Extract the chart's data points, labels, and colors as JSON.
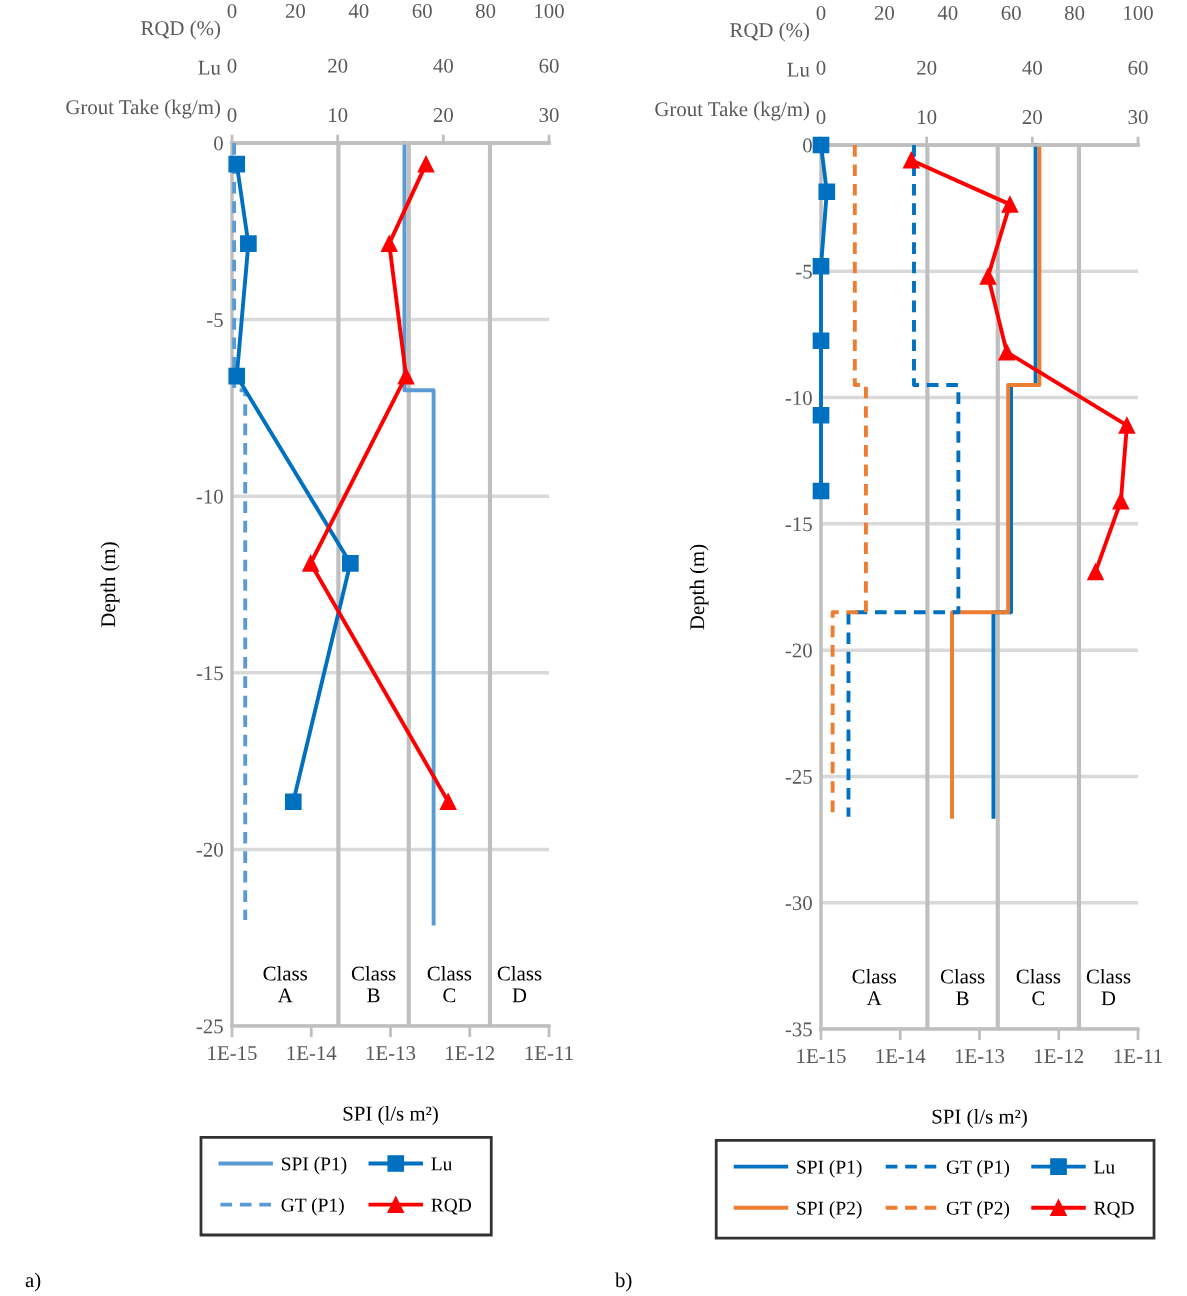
{
  "chart_data": [
    {
      "type": "line",
      "xlabel": "SPI (l/s m²)",
      "ylabel": "Depth (m)",
      "x2label": "Grout Take (kg/m)",
      "log": "x",
      "grid": "y",
      "legend": "bottom",
      "xlim": [
        1e-15,
        1e-11
      ],
      "xticks": [
        {
          "value": 1e-15,
          "label": "1E-15"
        },
        {
          "value": 1e-14,
          "label": "1E-14"
        },
        {
          "value": 1e-13,
          "label": "1E-13"
        },
        {
          "value": 1e-12,
          "label": "1E-12"
        },
        {
          "value": 1e-11,
          "label": "1E-11"
        }
      ],
      "x2lim": [
        0,
        30
      ],
      "x2ticks": [
        0,
        10,
        20,
        30
      ],
      "ylim": [
        -25,
        0
      ],
      "yticks": [
        0,
        -5,
        -10,
        -15,
        -20,
        -25
      ],
      "ref_lines": [
        {
          "axis": "x",
          "value": 2.2e-14,
          "color": "#bfbfbf"
        },
        {
          "axis": "x",
          "value": 1.7e-13,
          "color": "#bfbfbf"
        },
        {
          "axis": "x",
          "value": 1.8e-12,
          "color": "#bfbfbf"
        }
      ],
      "annotations": [
        "Class\nA",
        "Class\nB",
        "Class\nC",
        "Class\nD",
        "a)"
      ],
      "series": [
        {
          "name": "SPI (P1)",
          "color": "#5b9bd5",
          "line_style": "solid",
          "marker": "none",
          "x": [
            1.5e-13,
            1.5e-13,
            3.5e-13,
            3.5e-13
          ],
          "values": [
            0,
            -7,
            -7,
            -22.1
          ]
        },
        {
          "name": "GT (P1)",
          "axis": "x2",
          "color": "#5b9bd5",
          "line_style": "dashed",
          "marker": "none",
          "x": [
            0.2,
            0.2,
            1.25,
            1.25
          ],
          "values": [
            0,
            -7,
            -7,
            -22
          ]
        }
      ]
    },
    {
      "type": "line",
      "xlabel": "Lu",
      "xlim": [
        0,
        60
      ],
      "xticks": [
        0,
        20,
        40,
        60
      ],
      "ylim": [
        -25,
        0
      ],
      "tick_labels": "x",
      "series": [
        {
          "name": "Lu",
          "color": "#0070c0",
          "line_style": "solid",
          "marker": "square",
          "x": [
            0.9,
            3.1,
            0.9,
            22.4,
            11.6
          ],
          "values": [
            -0.6,
            -2.85,
            -6.6,
            -11.9,
            -18.65
          ]
        }
      ]
    },
    {
      "type": "line",
      "xlabel": "RQD (%)",
      "xlim": [
        0,
        100
      ],
      "xticks": [
        0,
        20,
        40,
        60,
        80,
        100
      ],
      "ylim": [
        -25,
        0
      ],
      "tick_labels": "x",
      "series": [
        {
          "name": "RQD",
          "color": "#ff0000",
          "line_style": "solid",
          "marker": "triangle",
          "x": [
            61.2,
            49.6,
            54.9,
            24.8,
            68.2
          ],
          "values": [
            -0.6,
            -2.85,
            -6.6,
            -11.9,
            -18.65
          ]
        }
      ]
    },
    {
      "type": "line",
      "xlabel": "SPI (l/s m²)",
      "ylabel": "Depth (m)",
      "x2label": "Grout Take (kg/m)",
      "log": "x",
      "grid": "y",
      "legend": "bottom",
      "xlim": [
        1e-15,
        1e-11
      ],
      "xticks": [
        {
          "value": 1e-15,
          "label": "1E-15"
        },
        {
          "value": 1e-14,
          "label": "1E-14"
        },
        {
          "value": 1e-13,
          "label": "1E-13"
        },
        {
          "value": 1e-12,
          "label": "1E-12"
        },
        {
          "value": 1e-11,
          "label": "1E-11"
        }
      ],
      "x2lim": [
        0,
        30
      ],
      "x2ticks": [
        0,
        10,
        20,
        30
      ],
      "ylim": [
        -35,
        0
      ],
      "yticks": [
        0,
        -5,
        -10,
        -15,
        -20,
        -25,
        -30,
        -35
      ],
      "ref_lines": [
        {
          "axis": "x",
          "value": 2.2e-14,
          "color": "#bfbfbf"
        },
        {
          "axis": "x",
          "value": 1.7e-13,
          "color": "#bfbfbf"
        },
        {
          "axis": "x",
          "value": 1.8e-12,
          "color": "#bfbfbf"
        }
      ],
      "annotations": [
        "Class\nA",
        "Class\nB",
        "Class\nC",
        "Class\nD",
        "b)"
      ],
      "series": [
        {
          "name": "SPI (P1)",
          "color": "#0070c0",
          "line_style": "solid",
          "marker": "none",
          "x": [
            5.1e-13,
            5.1e-13,
            2.5e-13,
            2.5e-13,
            1.5e-13,
            1.5e-13
          ],
          "values": [
            0,
            -9.5,
            -9.5,
            -18.5,
            -18.5,
            -26.6
          ]
        },
        {
          "name": "SPI (P2)",
          "color": "#ed7d31",
          "line_style": "solid",
          "marker": "none",
          "x": [
            5.7e-13,
            5.7e-13,
            2.3e-13,
            2.3e-13,
            4.5e-14,
            4.5e-14
          ],
          "values": [
            0,
            -9.5,
            -9.5,
            -18.5,
            -18.5,
            -26.6
          ]
        },
        {
          "name": "GT (P1)",
          "axis": "x2",
          "color": "#0070c0",
          "line_style": "dashed",
          "marker": "none",
          "x": [
            8.8,
            8.8,
            13.0,
            13.0,
            2.6,
            2.6
          ],
          "values": [
            0,
            -9.5,
            -9.5,
            -18.5,
            -18.5,
            -26.6
          ]
        },
        {
          "name": "GT (P2)",
          "axis": "x2",
          "color": "#ed7d31",
          "line_style": "dashed",
          "marker": "none",
          "x": [
            3.2,
            3.2,
            4.25,
            4.25,
            1.1,
            1.1
          ],
          "values": [
            0,
            -9.5,
            -9.5,
            -18.5,
            -18.5,
            -26.6
          ]
        }
      ]
    },
    {
      "type": "line",
      "xlabel": "Lu",
      "xlim": [
        0,
        60
      ],
      "xticks": [
        0,
        20,
        40,
        60
      ],
      "ylim": [
        -35,
        0
      ],
      "tick_labels": "x",
      "series": [
        {
          "name": "Lu",
          "color": "#0070c0",
          "line_style": "solid",
          "marker": "square",
          "x": [
            0,
            1.1,
            0,
            0,
            0,
            0
          ],
          "values": [
            0,
            -1.85,
            -4.8,
            -7.75,
            -10.7,
            -13.7
          ]
        }
      ]
    },
    {
      "type": "line",
      "xlabel": "RQD (%)",
      "xlim": [
        0,
        100
      ],
      "xticks": [
        0,
        20,
        40,
        60,
        80,
        100
      ],
      "ylim": [
        -35,
        0
      ],
      "tick_labels": "x",
      "series": [
        {
          "name": "RQD",
          "color": "#ff0000",
          "line_style": "solid",
          "marker": "triangle",
          "x": [
            28.5,
            59.6,
            52.7,
            58.6,
            96.5,
            94.6,
            86.6
          ],
          "values": [
            -0.6,
            -2.35,
            -5.2,
            -8.2,
            -11.1,
            -14.1,
            -16.9
          ]
        }
      ]
    }
  ]
}
